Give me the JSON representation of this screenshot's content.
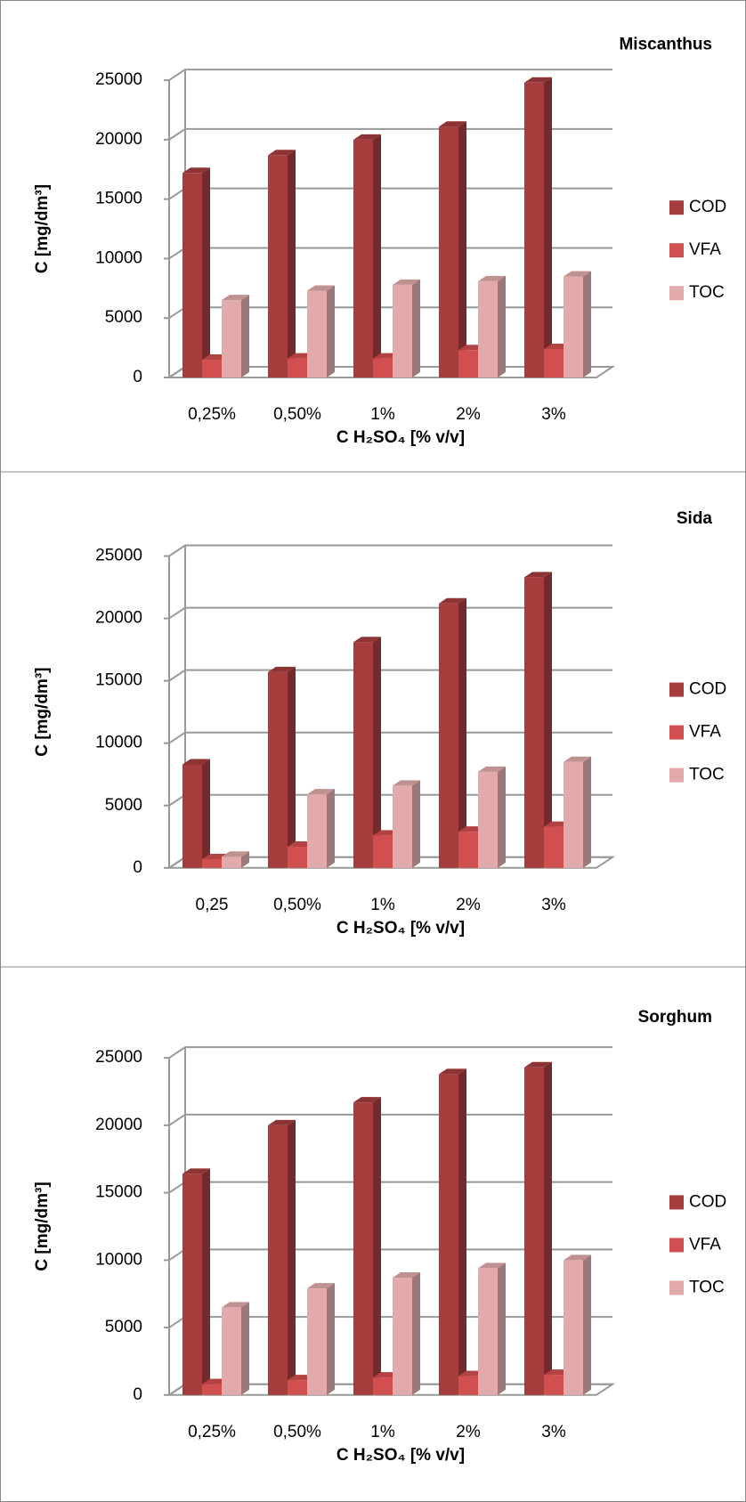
{
  "chart_data": [
    {
      "type": "bar",
      "title": "Miscanthus",
      "x_label": "C H₂SO₄ [% v/v]",
      "y_label": "C [mg/dm³]",
      "categories": [
        "0,25%",
        "0,50%",
        "1%",
        "2%",
        "3%"
      ],
      "series": [
        {
          "name": "COD",
          "color": "#a63c3c",
          "values": [
            17200,
            18700,
            20000,
            21100,
            24800
          ]
        },
        {
          "name": "VFA",
          "color": "#d24f4f",
          "values": [
            1500,
            1600,
            1600,
            2300,
            2400
          ]
        },
        {
          "name": "TOC",
          "color": "#e2aaab",
          "values": [
            6500,
            7300,
            7800,
            8100,
            8500
          ]
        }
      ],
      "ylim": [
        0,
        25000
      ],
      "yticks": [
        0,
        5000,
        10000,
        15000,
        20000,
        25000
      ],
      "grid": true
    },
    {
      "type": "bar",
      "title": "Sida",
      "x_label": "C H₂SO₄ [% v/v]",
      "y_label": "C [mg/dm³]",
      "categories": [
        "0,25",
        "0,50%",
        "1%",
        "2%",
        "3%"
      ],
      "series": [
        {
          "name": "COD",
          "color": "#a63c3c",
          "values": [
            8300,
            15700,
            18100,
            21200,
            23300
          ]
        },
        {
          "name": "VFA",
          "color": "#d24f4f",
          "values": [
            700,
            1700,
            2600,
            2900,
            3300
          ]
        },
        {
          "name": "TOC",
          "color": "#e2aaab",
          "values": [
            900,
            5900,
            6600,
            7700,
            8500
          ]
        }
      ],
      "ylim": [
        0,
        25000
      ],
      "yticks": [
        0,
        5000,
        10000,
        15000,
        20000,
        25000
      ],
      "grid": true
    },
    {
      "type": "bar",
      "title": "Sorghum",
      "x_label": "C H₂SO₄ [% v/v]",
      "y_label": "C [mg/dm³]",
      "categories": [
        "0,25%",
        "0,50%",
        "1%",
        "2%",
        "3%"
      ],
      "series": [
        {
          "name": "COD",
          "color": "#a63c3c",
          "values": [
            16400,
            20000,
            21700,
            23800,
            24300
          ]
        },
        {
          "name": "VFA",
          "color": "#d24f4f",
          "values": [
            800,
            1100,
            1300,
            1400,
            1500
          ]
        },
        {
          "name": "TOC",
          "color": "#e2aaab",
          "values": [
            6500,
            7900,
            8700,
            9400,
            10000
          ]
        }
      ],
      "ylim": [
        0,
        25000
      ],
      "yticks": [
        0,
        5000,
        10000,
        15000,
        20000,
        25000
      ],
      "grid": true
    }
  ]
}
